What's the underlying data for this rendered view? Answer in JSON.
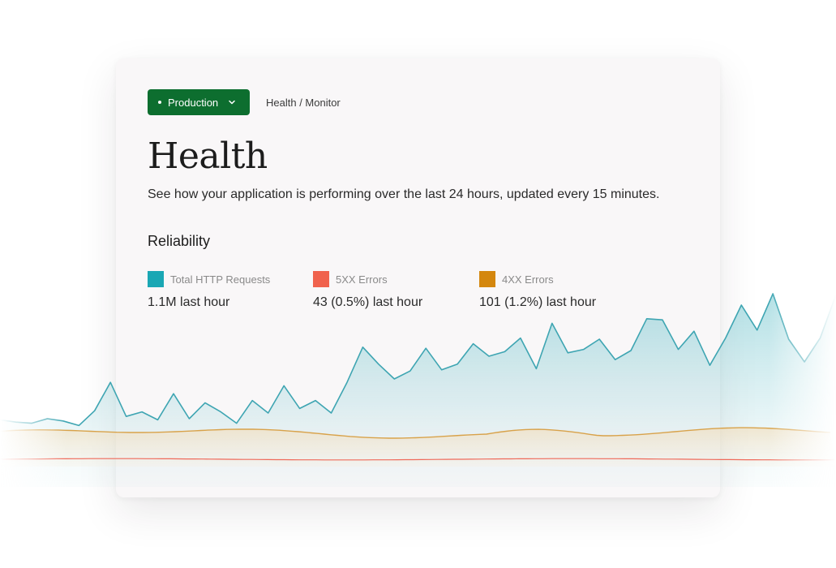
{
  "header": {
    "environment": "Production",
    "breadcrumb": "Health / Monitor"
  },
  "page": {
    "title": "Health",
    "description": "See how your application is performing over the last 24 hours, updated every 15 minutes."
  },
  "section": {
    "title": "Reliability"
  },
  "metrics": [
    {
      "label": "Total HTTP Requests",
      "value": "1.1M last hour",
      "color": "#1aa7b4"
    },
    {
      "label": "5XX Errors",
      "value": "43 (0.5%) last hour",
      "color": "#f0624d"
    },
    {
      "label": "4XX Errors",
      "value": "101 (1.2%) last hour",
      "color": "#d4870e"
    }
  ],
  "colors": {
    "brand_green": "#0d6e2f",
    "card_background": "#f9f7f8",
    "requests_line": "#3ea5b2",
    "errors_4xx_line": "#d8a24a",
    "errors_5xx_line": "#ef6a5a"
  },
  "icons": {
    "environment_chevron": "chevron-down-icon",
    "environment_dot": "status-dot-icon"
  },
  "chart_data": {
    "type": "area",
    "series": [
      {
        "name": "Total HTTP Requests",
        "color": "#3ea5b2",
        "values": [
          18,
          14,
          12,
          20,
          16,
          8,
          34,
          84,
          24,
          32,
          18,
          64,
          20,
          48,
          32,
          12,
          52,
          30,
          78,
          38,
          52,
          30,
          84,
          146,
          116,
          90,
          104,
          144,
          106,
          116,
          152,
          130,
          138,
          162,
          108,
          188,
          136,
          142,
          160,
          124,
          140,
          196,
          194,
          142,
          174,
          114,
          162,
          220,
          176,
          240,
          160,
          120,
          162,
          238
        ]
      },
      {
        "name": "4XX Errors",
        "color": "#d8a24a"
      },
      {
        "name": "5XX Errors",
        "color": "#ef6a5a"
      }
    ]
  }
}
